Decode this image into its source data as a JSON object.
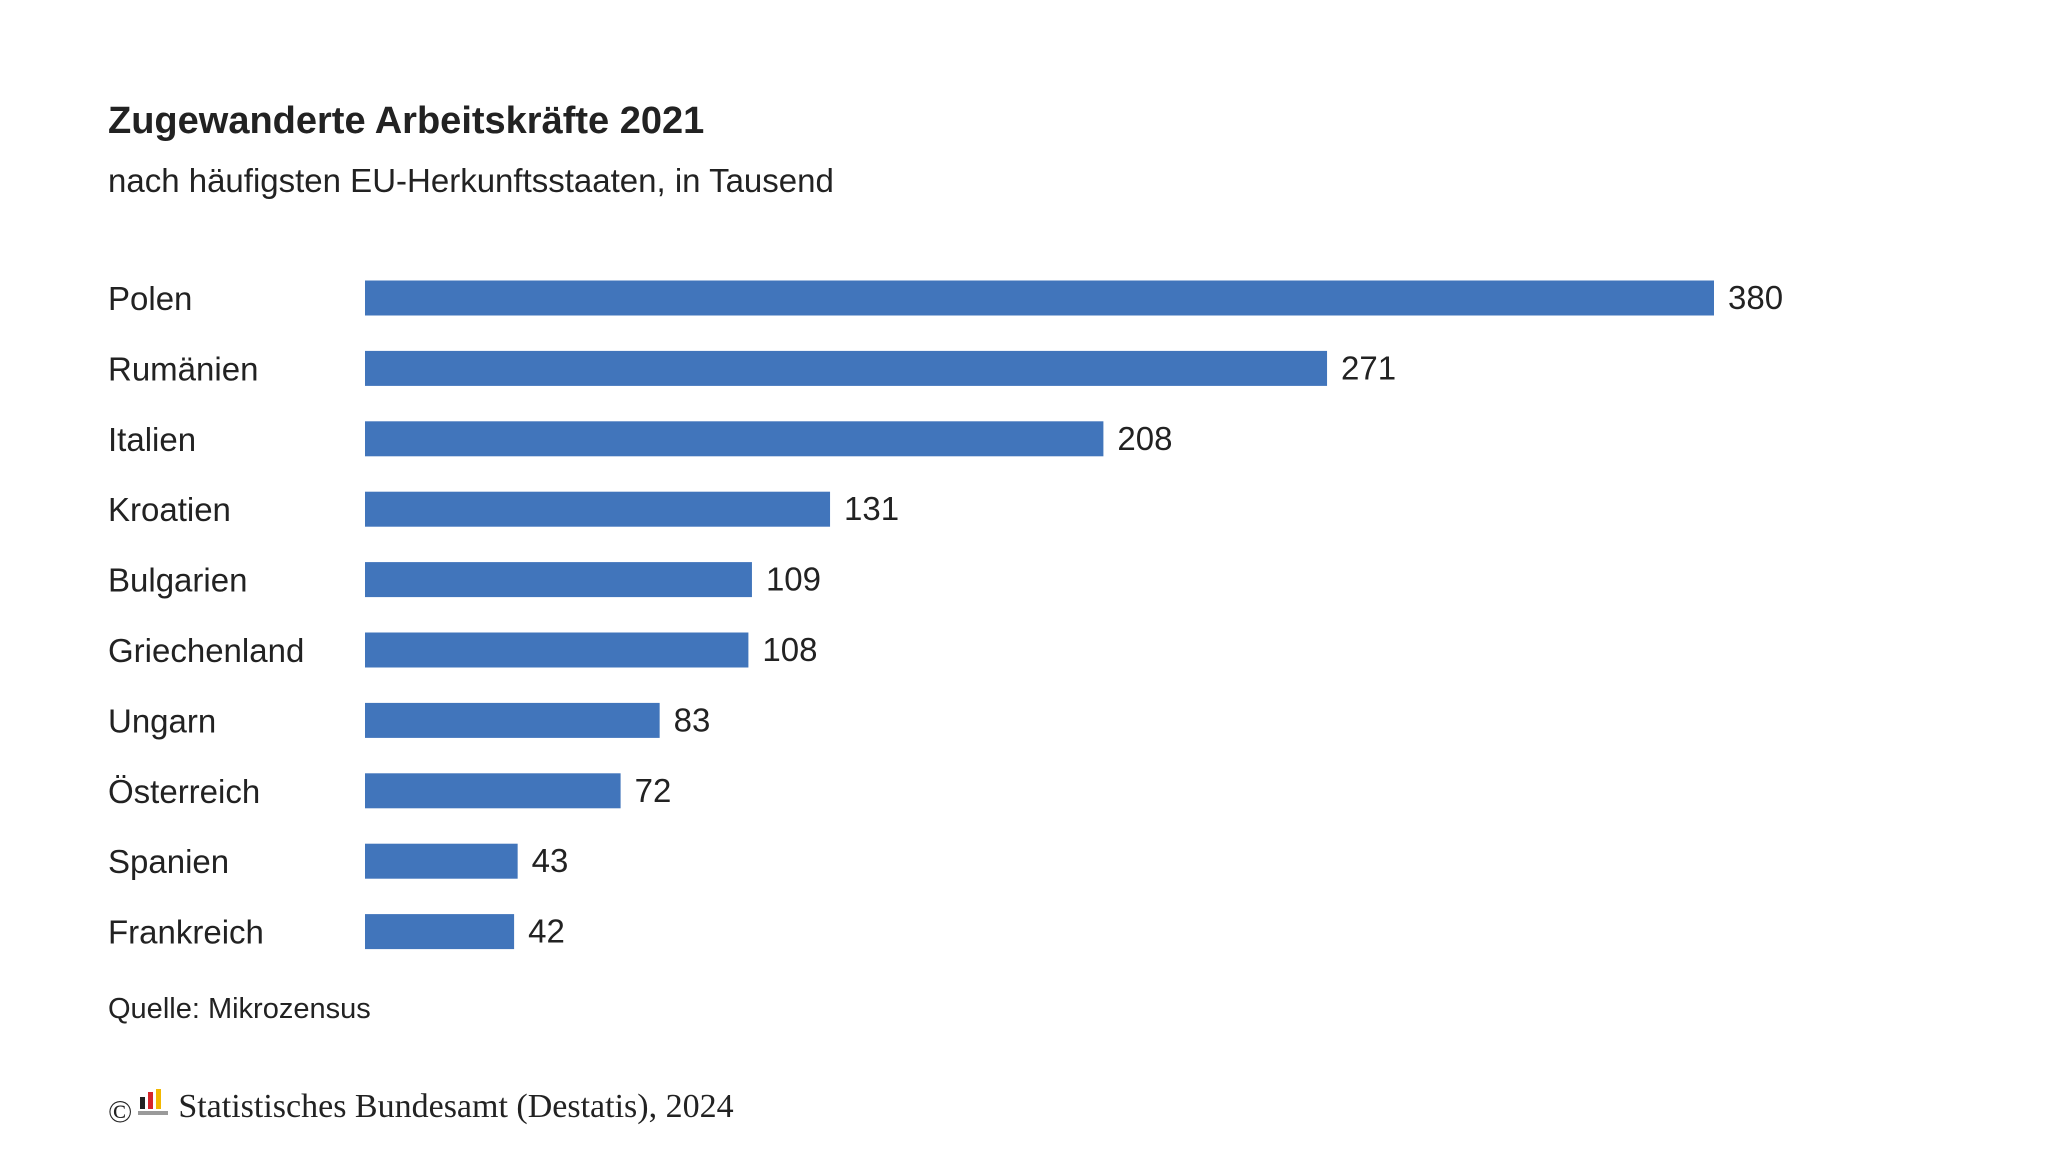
{
  "title": "Zugewanderte Arbeitskräfte 2021",
  "subtitle": "nach häufigsten EU-Herkunftsstaaten, in Tausend",
  "source": "Quelle: Mikrozensus",
  "footer": {
    "copyright_symbol": "©",
    "text": "Statistisches Bundesamt (Destatis), 2024",
    "logo_icon": "destatis-logo-icon"
  },
  "colors": {
    "bar": "#4175BB",
    "text": "#222222"
  },
  "chart_data": {
    "type": "bar",
    "orientation": "horizontal",
    "title": "Zugewanderte Arbeitskräfte 2021",
    "subtitle": "nach häufigsten EU-Herkunftsstaaten, in Tausend",
    "categories": [
      "Polen",
      "Rumänien",
      "Italien",
      "Kroatien",
      "Bulgarien",
      "Griechenland",
      "Ungarn",
      "Österreich",
      "Spanien",
      "Frankreich"
    ],
    "values": [
      380,
      271,
      208,
      131,
      109,
      108,
      83,
      72,
      43,
      42
    ],
    "xlabel": "",
    "ylabel": "",
    "xlim": [
      0,
      380
    ],
    "grid": false,
    "legend": "none",
    "data_labels": true
  }
}
